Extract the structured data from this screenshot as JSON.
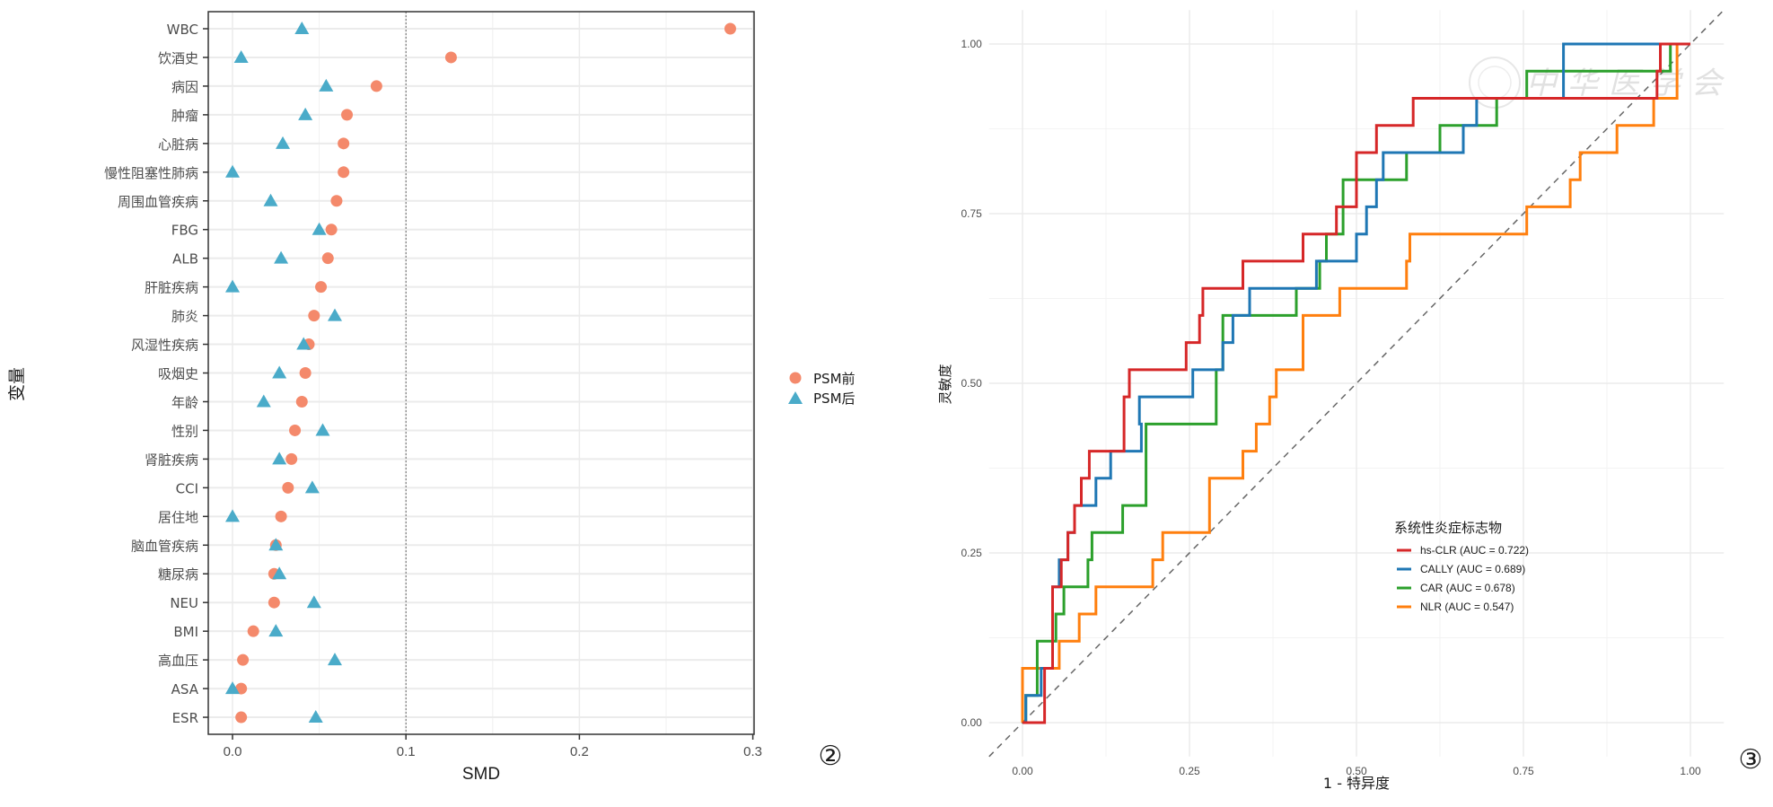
{
  "chart_data": [
    {
      "type": "scatter",
      "panel_number": "②",
      "title": "",
      "xlabel": "SMD",
      "ylabel": "变量",
      "xlim": [
        -0.013,
        0.302
      ],
      "xticks": [
        "0.0",
        "0.1",
        "0.2",
        "0.3"
      ],
      "xtick_values": [
        0.0,
        0.1,
        0.2,
        0.3
      ],
      "reference_line": {
        "x": 0.1,
        "style": "dotted"
      },
      "grid": true,
      "legend": {
        "placement": "right",
        "entries": [
          {
            "label": "PSM前",
            "color": "#F4896B",
            "shape": "circle"
          },
          {
            "label": "PSM后",
            "color": "#4AABC9",
            "shape": "triangle"
          }
        ]
      },
      "categories": [
        "WBC",
        "饮酒史",
        "病因",
        "肿瘤",
        "心脏病",
        "慢性阻塞性肺病",
        "周围血管疾病",
        "FBG",
        "ALB",
        "肝脏疾病",
        "肺炎",
        "风湿性疾病",
        "吸烟史",
        "年龄",
        "性别",
        "肾脏疾病",
        "CCI",
        "居住地",
        "脑血管疾病",
        "糖尿病",
        "NEU",
        "BMI",
        "高血压",
        "ASA",
        "ESR"
      ],
      "series": [
        {
          "name": "PSM前",
          "values": [
            0.287,
            0.126,
            0.083,
            0.066,
            0.064,
            0.064,
            0.06,
            0.057,
            0.055,
            0.051,
            0.047,
            0.044,
            0.042,
            0.04,
            0.036,
            0.034,
            0.032,
            0.028,
            0.025,
            0.024,
            0.024,
            0.012,
            0.006,
            0.005,
            0.005
          ]
        },
        {
          "name": "PSM后",
          "values": [
            0.04,
            0.005,
            0.054,
            0.042,
            0.029,
            0.0,
            0.022,
            0.05,
            0.028,
            0.0,
            0.059,
            0.041,
            0.027,
            0.018,
            0.052,
            0.027,
            0.046,
            0.0,
            0.025,
            0.027,
            0.047,
            0.025,
            0.059,
            0.0,
            0.048
          ]
        }
      ]
    },
    {
      "type": "line",
      "panel_number": "③",
      "title": "",
      "xlabel": "1 - 特异度",
      "ylabel": "灵敏度",
      "xlim": [
        -0.05,
        1.05
      ],
      "ylim": [
        -0.05,
        1.05
      ],
      "xticks": [
        "0.00",
        "0.25",
        "0.50",
        "0.75",
        "1.00"
      ],
      "yticks": [
        "0.00",
        "0.25",
        "0.50",
        "0.75",
        "1.00"
      ],
      "tick_values": [
        0,
        0.25,
        0.5,
        0.75,
        1.0
      ],
      "grid": true,
      "diagonal_reference": {
        "from": [
          -0.05,
          -0.05
        ],
        "to": [
          1.05,
          1.05
        ],
        "style": "dashed",
        "color": "#666666"
      },
      "legend": {
        "title": "系统性炎症标志物",
        "placement": "bottom-right"
      },
      "series": [
        {
          "name": "hs-CLR (AUC = 0.722)",
          "color": "#D62728",
          "points": [
            [
              0,
              0
            ],
            [
              0.033,
              0
            ],
            [
              0.033,
              0.08
            ],
            [
              0.045,
              0.08
            ],
            [
              0.045,
              0.2
            ],
            [
              0.058,
              0.2
            ],
            [
              0.058,
              0.24
            ],
            [
              0.068,
              0.24
            ],
            [
              0.068,
              0.28
            ],
            [
              0.078,
              0.28
            ],
            [
              0.078,
              0.32
            ],
            [
              0.088,
              0.32
            ],
            [
              0.088,
              0.36
            ],
            [
              0.1,
              0.36
            ],
            [
              0.1,
              0.4
            ],
            [
              0.152,
              0.4
            ],
            [
              0.152,
              0.48
            ],
            [
              0.16,
              0.48
            ],
            [
              0.16,
              0.52
            ],
            [
              0.245,
              0.52
            ],
            [
              0.245,
              0.56
            ],
            [
              0.265,
              0.56
            ],
            [
              0.265,
              0.6
            ],
            [
              0.27,
              0.6
            ],
            [
              0.27,
              0.64
            ],
            [
              0.33,
              0.64
            ],
            [
              0.33,
              0.68
            ],
            [
              0.42,
              0.68
            ],
            [
              0.42,
              0.72
            ],
            [
              0.432,
              0.72
            ],
            [
              0.432,
              0.72
            ],
            [
              0.47,
              0.72
            ],
            [
              0.47,
              0.76
            ],
            [
              0.5,
              0.76
            ],
            [
              0.5,
              0.84
            ],
            [
              0.53,
              0.84
            ],
            [
              0.53,
              0.88
            ],
            [
              0.585,
              0.88
            ],
            [
              0.585,
              0.92
            ],
            [
              0.785,
              0.92
            ],
            [
              0.785,
              0.92
            ],
            [
              0.95,
              0.92
            ],
            [
              0.95,
              0.96
            ],
            [
              0.955,
              0.96
            ],
            [
              0.955,
              1.0
            ],
            [
              1,
              1
            ]
          ]
        },
        {
          "name": "CALLY (AUC = 0.689)",
          "color": "#1F77B4",
          "points": [
            [
              0,
              0
            ],
            [
              0.005,
              0
            ],
            [
              0.005,
              0.04
            ],
            [
              0.028,
              0.04
            ],
            [
              0.028,
              0.08
            ],
            [
              0.045,
              0.08
            ],
            [
              0.045,
              0.2
            ],
            [
              0.055,
              0.2
            ],
            [
              0.055,
              0.24
            ],
            [
              0.068,
              0.24
            ],
            [
              0.068,
              0.28
            ],
            [
              0.078,
              0.28
            ],
            [
              0.078,
              0.32
            ],
            [
              0.11,
              0.32
            ],
            [
              0.11,
              0.36
            ],
            [
              0.132,
              0.36
            ],
            [
              0.132,
              0.4
            ],
            [
              0.178,
              0.4
            ],
            [
              0.178,
              0.44
            ],
            [
              0.175,
              0.44
            ],
            [
              0.175,
              0.48
            ],
            [
              0.255,
              0.48
            ],
            [
              0.255,
              0.52
            ],
            [
              0.3,
              0.52
            ],
            [
              0.3,
              0.56
            ],
            [
              0.315,
              0.56
            ],
            [
              0.315,
              0.6
            ],
            [
              0.34,
              0.6
            ],
            [
              0.34,
              0.64
            ],
            [
              0.44,
              0.64
            ],
            [
              0.44,
              0.68
            ],
            [
              0.5,
              0.68
            ],
            [
              0.5,
              0.72
            ],
            [
              0.515,
              0.72
            ],
            [
              0.515,
              0.76
            ],
            [
              0.53,
              0.76
            ],
            [
              0.53,
              0.8
            ],
            [
              0.54,
              0.8
            ],
            [
              0.54,
              0.84
            ],
            [
              0.66,
              0.84
            ],
            [
              0.66,
              0.88
            ],
            [
              0.68,
              0.88
            ],
            [
              0.68,
              0.92
            ],
            [
              0.81,
              0.92
            ],
            [
              0.81,
              0.96
            ],
            [
              0.81,
              1.0
            ],
            [
              1,
              1
            ]
          ]
        },
        {
          "name": "CAR (AUC = 0.678)",
          "color": "#2CA02C",
          "points": [
            [
              0,
              0
            ],
            [
              0.005,
              0
            ],
            [
              0.005,
              0.04
            ],
            [
              0.022,
              0.04
            ],
            [
              0.022,
              0.12
            ],
            [
              0.05,
              0.12
            ],
            [
              0.05,
              0.16
            ],
            [
              0.062,
              0.16
            ],
            [
              0.062,
              0.2
            ],
            [
              0.098,
              0.2
            ],
            [
              0.098,
              0.24
            ],
            [
              0.104,
              0.24
            ],
            [
              0.104,
              0.28
            ],
            [
              0.15,
              0.28
            ],
            [
              0.15,
              0.32
            ],
            [
              0.185,
              0.32
            ],
            [
              0.185,
              0.44
            ],
            [
              0.29,
              0.44
            ],
            [
              0.29,
              0.52
            ],
            [
              0.3,
              0.52
            ],
            [
              0.3,
              0.6
            ],
            [
              0.41,
              0.6
            ],
            [
              0.41,
              0.64
            ],
            [
              0.445,
              0.64
            ],
            [
              0.445,
              0.68
            ],
            [
              0.455,
              0.68
            ],
            [
              0.455,
              0.72
            ],
            [
              0.48,
              0.72
            ],
            [
              0.48,
              0.8
            ],
            [
              0.575,
              0.8
            ],
            [
              0.575,
              0.84
            ],
            [
              0.625,
              0.84
            ],
            [
              0.625,
              0.88
            ],
            [
              0.71,
              0.88
            ],
            [
              0.71,
              0.92
            ],
            [
              0.755,
              0.92
            ],
            [
              0.755,
              0.96
            ],
            [
              0.97,
              0.96
            ],
            [
              0.97,
              1.0
            ],
            [
              1,
              1
            ]
          ]
        },
        {
          "name": "NLR (AUC = 0.547)",
          "color": "#FF7F0E",
          "points": [
            [
              0,
              0
            ],
            [
              0,
              0.08
            ],
            [
              0.055,
              0.08
            ],
            [
              0.055,
              0.12
            ],
            [
              0.085,
              0.12
            ],
            [
              0.085,
              0.16
            ],
            [
              0.11,
              0.16
            ],
            [
              0.11,
              0.2
            ],
            [
              0.195,
              0.2
            ],
            [
              0.195,
              0.24
            ],
            [
              0.21,
              0.24
            ],
            [
              0.21,
              0.28
            ],
            [
              0.28,
              0.28
            ],
            [
              0.28,
              0.36
            ],
            [
              0.33,
              0.36
            ],
            [
              0.33,
              0.4
            ],
            [
              0.35,
              0.4
            ],
            [
              0.35,
              0.44
            ],
            [
              0.37,
              0.44
            ],
            [
              0.37,
              0.48
            ],
            [
              0.38,
              0.48
            ],
            [
              0.38,
              0.52
            ],
            [
              0.42,
              0.52
            ],
            [
              0.42,
              0.6
            ],
            [
              0.475,
              0.6
            ],
            [
              0.475,
              0.64
            ],
            [
              0.575,
              0.64
            ],
            [
              0.575,
              0.68
            ],
            [
              0.58,
              0.68
            ],
            [
              0.58,
              0.72
            ],
            [
              0.755,
              0.72
            ],
            [
              0.755,
              0.76
            ],
            [
              0.82,
              0.76
            ],
            [
              0.82,
              0.8
            ],
            [
              0.835,
              0.8
            ],
            [
              0.835,
              0.84
            ],
            [
              0.89,
              0.84
            ],
            [
              0.89,
              0.88
            ],
            [
              0.945,
              0.88
            ],
            [
              0.945,
              0.92
            ],
            [
              0.98,
              0.92
            ],
            [
              0.98,
              1.0
            ],
            [
              1,
              1
            ]
          ]
        }
      ]
    }
  ],
  "watermark": "中华医学会"
}
